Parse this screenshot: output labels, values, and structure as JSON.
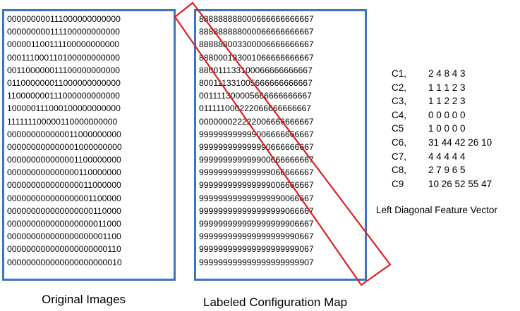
{
  "original_images": {
    "caption": "Original Images",
    "rows": [
      "000000000111000000000000",
      "000000000111100000000000",
      "000001100111100000000000",
      "000111000110100000000000",
      "001100000011100000000000",
      "011000000011000000000000",
      "110000000111000000000000",
      "100000111000100000000000",
      "111111100000110000000000",
      "000000000000011000000000",
      "000000000000001000000000",
      "000000000000001100000000",
      "000000000000000110000000",
      "000000000000000011000000",
      "000000000000000001100000",
      "000000000000000000110000",
      "000000000000000000011000",
      "000000000000000000001100",
      "000000000000000000000110",
      "000000000000000000000010"
    ]
  },
  "configuration_map": {
    "caption": "Labeled Configuration Map",
    "rows": [
      "888888888000666666666667",
      "888888888000066666666667",
      "888888003300006666666667",
      "888000133001066666666667",
      "880011133100066666666667",
      "800111331005666666666667",
      "001111300005666666666667",
      "011111000222066666666667",
      "000000022222006666666667",
      "999999999999006666666667",
      "999999999999990666666667",
      "999999999999900666666667",
      "999999999999999066666667",
      "999999999999999006666667",
      "999999999999999990066667",
      "999999999999999999066667",
      "999999999999999999906667",
      "999999999999999999990667",
      "999999999999999999999067",
      "999999999999999999999907"
    ]
  },
  "feature_vector": {
    "title": "Left Diagonal Feature Vector",
    "items": [
      {
        "label": "C1,",
        "values": "2 4 8 4 3"
      },
      {
        "label": "C2,",
        "values": "1 1 1 2 3"
      },
      {
        "label": "C3,",
        "values": "1 1 2 2 3"
      },
      {
        "label": "C4,",
        "values": "0 0 0 0 0"
      },
      {
        "label": "C5",
        "values": "1 0 0 0 0"
      },
      {
        "label": "C6,",
        "values": "31 44 42 26 10"
      },
      {
        "label": "C7,",
        "values": "4 4 4 4 4"
      },
      {
        "label": "C8,",
        "values": "2 7 9 6 5"
      },
      {
        "label": "C9",
        "values": "10 26 52 55 47"
      }
    ]
  },
  "colors": {
    "box_border": "#3b74c0",
    "diagonal_band": "#e02020"
  }
}
